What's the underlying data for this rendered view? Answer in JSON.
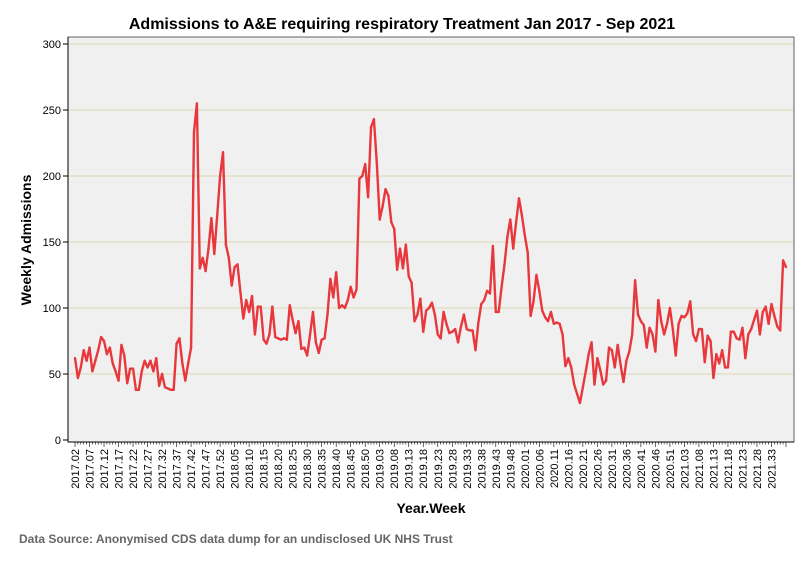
{
  "chart_data": {
    "type": "line",
    "title": "Admissions to A&E requiring respiratory Treatment Jan 2017 - Sep 2021",
    "xlabel": "Year.Week",
    "ylabel": "Weekly Admissions",
    "ylim": [
      0,
      300
    ],
    "yticks": [
      0,
      50,
      100,
      150,
      200,
      250,
      300
    ],
    "grid": "horizontal",
    "x_tick_labels": [
      "2017.02",
      "2017.07",
      "2017.12",
      "2017.17",
      "2017.22",
      "2017.27",
      "2017.32",
      "2017.37",
      "2017.42",
      "2017.47",
      "2017.52",
      "2018.05",
      "2018.10",
      "2018.15",
      "2018.20",
      "2018.25",
      "2018.30",
      "2018.35",
      "2018.40",
      "2018.45",
      "2018.50",
      "2019.03",
      "2019.08",
      "2019.13",
      "2019.18",
      "2019.23",
      "2019.28",
      "2019.33",
      "2019.38",
      "2019.43",
      "2019.48",
      "2020.01",
      "2020.06",
      "2020.11",
      "2020.16",
      "2020.21",
      "2020.26",
      "2020.31",
      "2020.36",
      "2020.41",
      "2020.46",
      "2020.51",
      "2021.03",
      "2021.08",
      "2021.13",
      "2021.18",
      "2021.23",
      "2021.28",
      "2021.33"
    ],
    "series": [
      {
        "color": "#e8383d",
        "values": [
          62,
          47,
          55,
          68,
          60,
          70,
          52,
          60,
          68,
          78,
          75,
          65,
          70,
          58,
          52,
          45,
          72,
          64,
          43,
          54,
          54,
          38,
          38,
          52,
          60,
          55,
          60,
          52,
          62,
          41,
          50,
          40,
          39,
          38,
          38,
          73,
          77,
          58,
          45,
          58,
          70,
          233,
          255,
          130,
          138,
          128,
          145,
          168,
          141,
          170,
          200,
          218,
          148,
          138,
          117,
          131,
          133,
          112,
          92,
          106,
          97,
          109,
          80,
          101,
          101,
          76,
          73,
          80,
          101,
          78,
          77,
          76,
          77,
          76,
          102,
          91,
          81,
          90,
          69,
          70,
          64,
          80,
          97,
          74,
          66,
          76,
          77,
          95,
          122,
          108,
          127,
          100,
          102,
          100,
          106,
          116,
          108,
          114,
          198,
          200,
          209,
          184,
          237,
          243,
          210,
          167,
          177,
          190,
          185,
          165,
          160,
          129,
          145,
          130,
          148,
          124,
          119,
          90,
          95,
          107,
          82,
          98,
          100,
          104,
          95,
          80,
          77,
          97,
          88,
          81,
          82,
          84,
          74,
          86,
          95,
          84,
          83,
          83,
          68,
          89,
          103,
          106,
          113,
          111,
          147,
          97,
          97,
          116,
          133,
          154,
          167,
          145,
          165,
          183,
          170,
          155,
          142,
          94,
          105,
          125,
          113,
          98,
          93,
          90,
          97,
          88,
          89,
          88,
          80,
          56,
          62,
          55,
          42,
          35,
          28,
          40,
          52,
          65,
          74,
          42,
          62,
          53,
          42,
          45,
          70,
          68,
          55,
          72,
          57,
          44,
          60,
          67,
          80,
          121,
          95,
          90,
          87,
          70,
          85,
          80,
          67,
          106,
          90,
          80,
          88,
          100,
          84,
          64,
          88,
          94,
          93,
          96,
          105,
          80,
          75,
          84,
          84,
          59,
          79,
          75,
          47,
          65,
          58,
          68,
          55,
          55,
          82,
          82,
          77,
          76,
          85,
          62,
          80,
          84,
          91,
          98,
          80,
          97,
          101,
          88,
          103,
          94,
          86,
          83,
          136,
          131
        ]
      }
    ]
  },
  "footer": {
    "source": "Data Source: Anonymised CDS data dump for an undisclosed UK NHS Trust"
  }
}
